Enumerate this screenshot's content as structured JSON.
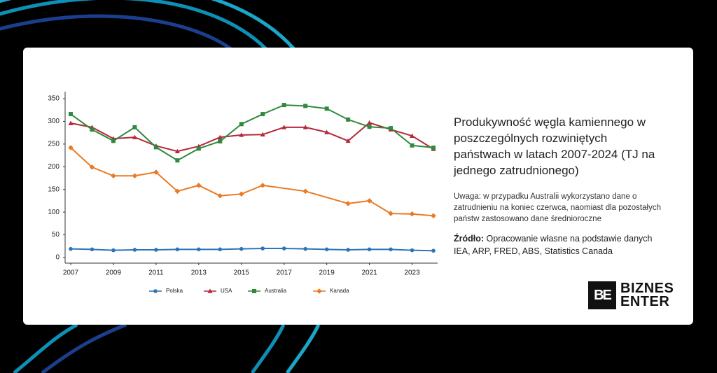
{
  "chart_data": {
    "type": "line",
    "title": "Produkywność węgla kamiennego w poszczególnych rozwiniętych państwach w latach 2007-2024 (TJ na jednego zatrudnionego)",
    "note": "Uwaga: w przypadku Australii wykorzystano dane o zatrudnieniu na koniec czerwca, naomiast dla pozostałych państw zastosowano dane średnioroczne",
    "source_label": "Źródło:",
    "source_text": "Opracowanie własne na podstawie danych IEA, ARP, FRED, ABS, Statistics Canada",
    "x": [
      2007,
      2008,
      2009,
      2010,
      2011,
      2012,
      2013,
      2014,
      2015,
      2016,
      2017,
      2018,
      2019,
      2020,
      2021,
      2022,
      2023,
      2024
    ],
    "xlim": [
      2007,
      2024
    ],
    "xticks": [
      2007,
      2009,
      2011,
      2013,
      2015,
      2017,
      2019,
      2021,
      2023
    ],
    "ylim": [
      0,
      350
    ],
    "yticks": [
      0,
      50,
      100,
      150,
      200,
      250,
      300,
      350
    ],
    "legend": "bottom",
    "series": [
      {
        "name": "Polska",
        "color": "#2e75b6",
        "marker": "circle",
        "values": [
          19,
          18,
          16,
          17,
          17,
          18,
          18,
          18,
          19,
          20,
          20,
          19,
          18,
          17,
          18,
          18,
          16,
          15
        ]
      },
      {
        "name": "USA",
        "color": "#b5283a",
        "marker": "triangle",
        "values": [
          296,
          287,
          262,
          265,
          246,
          234,
          245,
          265,
          270,
          271,
          287,
          287,
          276,
          257,
          297,
          282,
          268,
          239
        ]
      },
      {
        "name": "Australia",
        "color": "#2f8a3f",
        "marker": "square",
        "values": [
          316,
          282,
          257,
          287,
          243,
          214,
          240,
          256,
          294,
          316,
          336,
          334,
          328,
          304,
          288,
          285,
          247,
          242
        ]
      },
      {
        "name": "Kanada",
        "color": "#ea7a24",
        "marker": "diamond",
        "x": [
          2007,
          2008,
          2009,
          2010,
          2011,
          2012,
          2013,
          2014,
          2015,
          2016,
          2018,
          2020,
          2021,
          2022,
          2023,
          2024
        ],
        "values": [
          242,
          199,
          180,
          180,
          188,
          146,
          159,
          136,
          140,
          159,
          146,
          119,
          125,
          97,
          96,
          92
        ]
      }
    ]
  },
  "logo": {
    "icon": "BE",
    "line1": "BIZNES",
    "line2": "ENTER"
  }
}
